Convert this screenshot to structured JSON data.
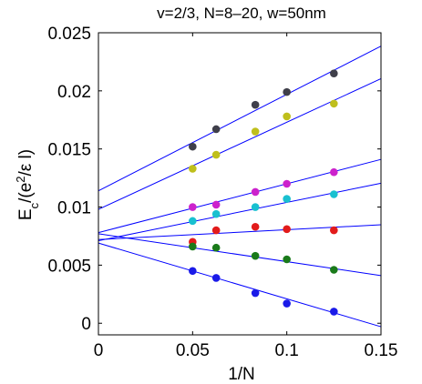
{
  "chart_data": {
    "type": "scatter",
    "title": "v=2/3, N=8–20, w=50nm",
    "xlabel": "1/N",
    "ylabel": {
      "main": "E",
      "sub": "c",
      "open": "/(e",
      "sup": "2",
      "close": "/ε l)"
    },
    "xlim": [
      0,
      0.15
    ],
    "ylim": [
      -0.001,
      0.025
    ],
    "xticks": [
      0,
      0.05,
      0.1,
      0.15
    ],
    "xtick_labels": [
      "0",
      "0.05",
      "0.1",
      "0.15"
    ],
    "yticks": [
      0,
      0.005,
      0.01,
      0.015,
      0.02,
      0.025
    ],
    "ytick_labels": [
      "0",
      "0.005",
      "0.01",
      "0.015",
      "0.02",
      "0.025"
    ],
    "grid": false,
    "fit_line_color": "#0000ff",
    "x": [
      0.05,
      0.0625,
      0.0833,
      0.1,
      0.125
    ],
    "series": [
      {
        "color": "#3f3f4a",
        "values": [
          0.0152,
          0.0167,
          0.0188,
          0.0199,
          0.0215
        ],
        "fit": {
          "intercept": 0.0114,
          "slope": 0.083
        }
      },
      {
        "color": "#bfbf1c",
        "values": [
          0.0133,
          0.0145,
          0.0165,
          0.0178,
          0.0189
        ],
        "fit": {
          "intercept": 0.0098,
          "slope": 0.075
        }
      },
      {
        "color": "#cc22cc",
        "values": [
          0.01,
          0.0102,
          0.0113,
          0.012,
          0.013
        ],
        "fit": {
          "intercept": 0.0078,
          "slope": 0.042
        }
      },
      {
        "color": "#19c0d0",
        "values": [
          0.0088,
          0.0094,
          0.01,
          0.0107,
          0.0111
        ],
        "fit": {
          "intercept": 0.0071,
          "slope": 0.033
        }
      },
      {
        "color": "#e21b1b",
        "values": [
          0.007,
          0.008,
          0.0083,
          0.0081,
          0.008
        ],
        "fit": {
          "intercept": 0.0072,
          "slope": 0.0085
        }
      },
      {
        "color": "#1a7a1a",
        "values": [
          0.0066,
          0.0065,
          0.0058,
          0.0055,
          0.0046
        ],
        "fit": {
          "intercept": 0.0077,
          "slope": -0.024
        }
      },
      {
        "color": "#1a1ae8",
        "values": [
          0.0045,
          0.0039,
          0.0026,
          0.0017,
          0.001
        ],
        "fit": {
          "intercept": 0.0069,
          "slope": -0.048
        }
      }
    ]
  }
}
